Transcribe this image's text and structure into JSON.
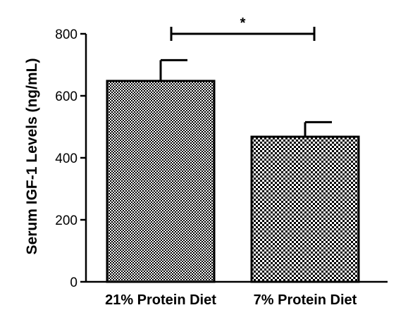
{
  "chart_data": {
    "type": "bar",
    "title": "",
    "xlabel": "",
    "ylabel": "Serum IGF-1 Levels (ng/mL)",
    "categories": [
      "21% Protein Diet",
      "7% Protein Diet"
    ],
    "values": [
      648,
      468
    ],
    "error_bars": [
      67,
      47
    ],
    "ylim": [
      0,
      800
    ],
    "yticks": [
      "0",
      "200",
      "400",
      "600",
      "800"
    ],
    "grid": false,
    "legend": "none",
    "bar_patterns": [
      "fine-checker",
      "coarse-checker"
    ],
    "significance": {
      "between": [
        "21% Protein Diet",
        "7% Protein Diet"
      ],
      "label": "*"
    },
    "colors": {
      "bar_fill": "#000000",
      "bar_background": "#ffffff",
      "axis": "#000000"
    }
  }
}
